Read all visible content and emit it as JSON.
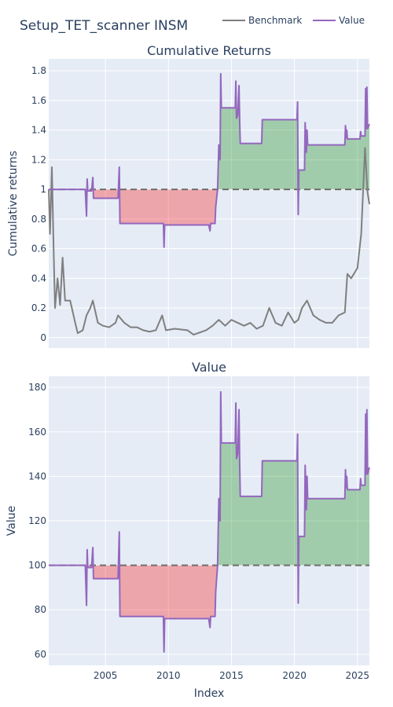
{
  "figure": {
    "title": "Setup_TET_scanner INSM",
    "xlabel": "Index",
    "legend": [
      {
        "name": "Benchmark",
        "color": "#7f7f7f"
      },
      {
        "name": "Value",
        "color": "#9467bd"
      }
    ]
  },
  "chart_data": [
    {
      "type": "line",
      "title": "Cumulative Returns",
      "ylabel": "Cumulative returns",
      "xlim": [
        2000.5,
        2025.95
      ],
      "ylim": [
        -0.07,
        1.88
      ],
      "yticks": [
        0,
        0.2,
        0.4,
        0.6,
        0.8,
        1,
        1.2,
        1.4,
        1.6,
        1.8
      ],
      "xticks": [
        2005,
        2010,
        2015,
        2020,
        2025
      ],
      "baseline": 1,
      "series": [
        {
          "name": "Benchmark",
          "color": "#7f7f7f",
          "points": [
            [
              2000.5,
              1.0
            ],
            [
              2000.6,
              0.7
            ],
            [
              2000.75,
              1.15
            ],
            [
              2000.9,
              0.55
            ],
            [
              2001.0,
              0.2
            ],
            [
              2001.2,
              0.4
            ],
            [
              2001.4,
              0.22
            ],
            [
              2001.6,
              0.54
            ],
            [
              2001.8,
              0.25
            ],
            [
              2002.2,
              0.25
            ],
            [
              2002.6,
              0.1
            ],
            [
              2002.8,
              0.03
            ],
            [
              2003.2,
              0.05
            ],
            [
              2003.5,
              0.15
            ],
            [
              2003.8,
              0.2
            ],
            [
              2004.0,
              0.25
            ],
            [
              2004.4,
              0.1
            ],
            [
              2004.8,
              0.08
            ],
            [
              2005.3,
              0.07
            ],
            [
              2005.8,
              0.1
            ],
            [
              2006.0,
              0.15
            ],
            [
              2006.5,
              0.1
            ],
            [
              2007.0,
              0.07
            ],
            [
              2007.5,
              0.07
            ],
            [
              2008.0,
              0.05
            ],
            [
              2008.5,
              0.04
            ],
            [
              2009.0,
              0.05
            ],
            [
              2009.5,
              0.15
            ],
            [
              2009.8,
              0.05
            ],
            [
              2010.5,
              0.06
            ],
            [
              2011.5,
              0.05
            ],
            [
              2012.0,
              0.02
            ],
            [
              2013.0,
              0.05
            ],
            [
              2013.5,
              0.08
            ],
            [
              2014.0,
              0.12
            ],
            [
              2014.5,
              0.08
            ],
            [
              2015.0,
              0.12
            ],
            [
              2015.5,
              0.1
            ],
            [
              2016.0,
              0.08
            ],
            [
              2016.5,
              0.1
            ],
            [
              2017.0,
              0.06
            ],
            [
              2017.5,
              0.08
            ],
            [
              2018.0,
              0.2
            ],
            [
              2018.5,
              0.1
            ],
            [
              2019.0,
              0.08
            ],
            [
              2019.5,
              0.17
            ],
            [
              2020.0,
              0.1
            ],
            [
              2020.3,
              0.12
            ],
            [
              2020.6,
              0.2
            ],
            [
              2021.0,
              0.25
            ],
            [
              2021.5,
              0.15
            ],
            [
              2022.0,
              0.12
            ],
            [
              2022.5,
              0.1
            ],
            [
              2023.0,
              0.1
            ],
            [
              2023.5,
              0.15
            ],
            [
              2024.0,
              0.17
            ],
            [
              2024.2,
              0.43
            ],
            [
              2024.5,
              0.4
            ],
            [
              2025.0,
              0.47
            ],
            [
              2025.3,
              0.7
            ],
            [
              2025.6,
              1.28
            ],
            [
              2025.8,
              0.98
            ],
            [
              2025.95,
              0.9
            ]
          ]
        },
        {
          "name": "Value",
          "color": "#9467bd",
          "points": [
            [
              2000.5,
              1.0
            ],
            [
              2003.4,
              1.0
            ],
            [
              2003.5,
              0.82
            ],
            [
              2003.55,
              1.07
            ],
            [
              2003.6,
              0.99
            ],
            [
              2003.9,
              0.99
            ],
            [
              2004.0,
              1.08
            ],
            [
              2004.05,
              0.94
            ],
            [
              2006.0,
              0.94
            ],
            [
              2006.1,
              1.15
            ],
            [
              2006.15,
              0.77
            ],
            [
              2009.6,
              0.77
            ],
            [
              2009.65,
              0.61
            ],
            [
              2009.7,
              0.76
            ],
            [
              2013.2,
              0.76
            ],
            [
              2013.3,
              0.72
            ],
            [
              2013.35,
              0.77
            ],
            [
              2013.6,
              0.77
            ],
            [
              2013.7,
              0.77
            ],
            [
              2013.75,
              0.88
            ],
            [
              2013.9,
              1.0
            ],
            [
              2014.0,
              1.3
            ],
            [
              2014.1,
              1.2
            ],
            [
              2014.15,
              1.78
            ],
            [
              2014.2,
              1.55
            ],
            [
              2015.3,
              1.55
            ],
            [
              2015.35,
              1.73
            ],
            [
              2015.4,
              1.48
            ],
            [
              2015.5,
              1.5
            ],
            [
              2015.6,
              1.7
            ],
            [
              2015.65,
              1.47
            ],
            [
              2015.7,
              1.31
            ],
            [
              2017.4,
              1.31
            ],
            [
              2017.45,
              1.47
            ],
            [
              2020.2,
              1.47
            ],
            [
              2020.25,
              1.59
            ],
            [
              2020.3,
              0.83
            ],
            [
              2020.35,
              1.13
            ],
            [
              2020.8,
              1.13
            ],
            [
              2020.85,
              1.45
            ],
            [
              2020.95,
              1.25
            ],
            [
              2021.0,
              1.4
            ],
            [
              2021.05,
              1.3
            ],
            [
              2024.0,
              1.3
            ],
            [
              2024.05,
              1.43
            ],
            [
              2024.1,
              1.35
            ],
            [
              2024.15,
              1.4
            ],
            [
              2024.2,
              1.34
            ],
            [
              2025.2,
              1.34
            ],
            [
              2025.25,
              1.39
            ],
            [
              2025.3,
              1.36
            ],
            [
              2025.6,
              1.36
            ],
            [
              2025.65,
              1.68
            ],
            [
              2025.7,
              1.41
            ],
            [
              2025.75,
              1.69
            ],
            [
              2025.8,
              1.41
            ],
            [
              2025.95,
              1.44
            ]
          ]
        }
      ]
    },
    {
      "type": "line",
      "title": "Value",
      "ylabel": "Value",
      "xlim": [
        2000.5,
        2025.95
      ],
      "ylim": [
        55,
        185
      ],
      "yticks": [
        60,
        80,
        100,
        120,
        140,
        160,
        180
      ],
      "xticks": [
        2005,
        2010,
        2015,
        2020,
        2025
      ],
      "baseline": 100,
      "series": [
        {
          "name": "Value",
          "color": "#9467bd",
          "points": [
            [
              2000.5,
              100
            ],
            [
              2003.4,
              100
            ],
            [
              2003.5,
              82
            ],
            [
              2003.55,
              107
            ],
            [
              2003.6,
              99
            ],
            [
              2003.9,
              99
            ],
            [
              2004.0,
              108
            ],
            [
              2004.05,
              94
            ],
            [
              2006.0,
              94
            ],
            [
              2006.1,
              115
            ],
            [
              2006.15,
              77
            ],
            [
              2009.6,
              77
            ],
            [
              2009.65,
              61
            ],
            [
              2009.7,
              76
            ],
            [
              2013.2,
              76
            ],
            [
              2013.3,
              72
            ],
            [
              2013.35,
              77
            ],
            [
              2013.6,
              77
            ],
            [
              2013.7,
              77
            ],
            [
              2013.75,
              88
            ],
            [
              2013.9,
              100
            ],
            [
              2014.0,
              130
            ],
            [
              2014.1,
              120
            ],
            [
              2014.15,
              178
            ],
            [
              2014.2,
              155
            ],
            [
              2015.3,
              155
            ],
            [
              2015.35,
              173
            ],
            [
              2015.4,
              148
            ],
            [
              2015.5,
              150
            ],
            [
              2015.6,
              170
            ],
            [
              2015.65,
              147
            ],
            [
              2015.7,
              131
            ],
            [
              2017.4,
              131
            ],
            [
              2017.45,
              147
            ],
            [
              2020.2,
              147
            ],
            [
              2020.25,
              159
            ],
            [
              2020.3,
              83
            ],
            [
              2020.35,
              113
            ],
            [
              2020.8,
              113
            ],
            [
              2020.85,
              145
            ],
            [
              2020.95,
              125
            ],
            [
              2021.0,
              140
            ],
            [
              2021.05,
              130
            ],
            [
              2024.0,
              130
            ],
            [
              2024.05,
              143
            ],
            [
              2024.1,
              135
            ],
            [
              2024.15,
              140
            ],
            [
              2024.2,
              134
            ],
            [
              2025.2,
              134
            ],
            [
              2025.25,
              139
            ],
            [
              2025.3,
              136
            ],
            [
              2025.6,
              136
            ],
            [
              2025.65,
              168
            ],
            [
              2025.7,
              141
            ],
            [
              2025.75,
              170
            ],
            [
              2025.8,
              141
            ],
            [
              2025.95,
              144
            ]
          ]
        }
      ]
    }
  ]
}
